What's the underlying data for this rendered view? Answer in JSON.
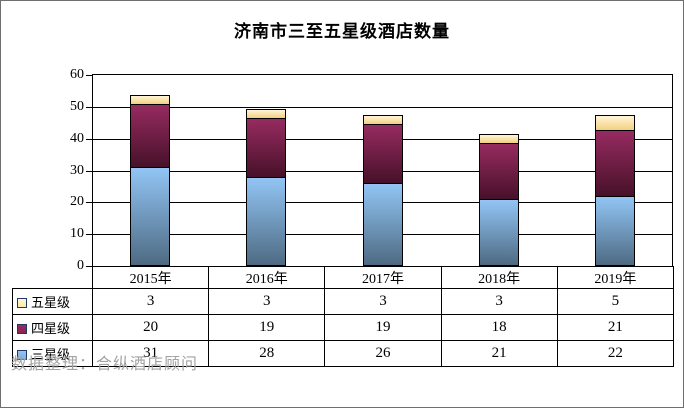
{
  "title": "济南市三至五星级酒店数量",
  "watermark": "数据整理：合纵酒店顾问",
  "chart_data": {
    "type": "bar",
    "stacked": true,
    "title": "济南市三至五星级酒店数量",
    "categories": [
      "2015年",
      "2016年",
      "2017年",
      "2018年",
      "2019年"
    ],
    "series": [
      {
        "name": "三星级",
        "values": [
          31,
          28,
          26,
          21,
          22
        ],
        "color_top": "#92c5f5",
        "color_bottom": "#4e6a82",
        "swatch": "#7eb0e3"
      },
      {
        "name": "四星级",
        "values": [
          20,
          19,
          19,
          18,
          21
        ],
        "color_top": "#962b60",
        "color_bottom": "#471129",
        "swatch": "#8b2556"
      },
      {
        "name": "五星级",
        "values": [
          3,
          3,
          3,
          3,
          5
        ],
        "color_top": "#fff5d8",
        "color_bottom": "#f3d07e",
        "swatch": "#ffe9a9"
      }
    ],
    "ylim": [
      0,
      60
    ],
    "ytick_step": 10,
    "yticks": [
      0,
      10,
      20,
      30,
      40,
      50,
      60
    ],
    "totals": [
      54,
      50,
      48,
      42,
      48
    ],
    "grid": "horizontal",
    "legend_position": "data-table-left",
    "data_table_shown": true,
    "table_row_order": [
      "五星级",
      "四星级",
      "三星级"
    ]
  }
}
